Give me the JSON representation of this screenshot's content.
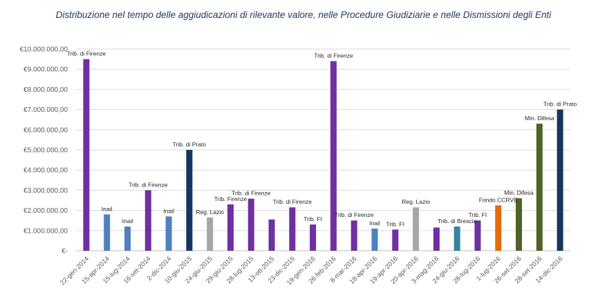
{
  "chart_data": {
    "type": "bar",
    "title": "Distribuzione nel tempo delle aggiudicazioni di rilevante valore, nelle Procedure Giudiziarie e nelle Dismissioni degli Enti",
    "ylim": [
      0,
      10000000
    ],
    "yticks": [
      0,
      1000000,
      2000000,
      3000000,
      4000000,
      5000000,
      6000000,
      7000000,
      8000000,
      9000000,
      10000000
    ],
    "ytick_labels": [
      "€-",
      "€1.000.000,00",
      "€2.000.000,00",
      "€3.000.000,00",
      "€4.000.000,00",
      "€5.000.000,00",
      "€6.000.000,00",
      "€7.000.000,00",
      "€8.000.000,00",
      "€9.000.000,00",
      "€10.000.000,00"
    ],
    "grid": true,
    "categories": [
      "22-gen-2014",
      "15-apr-2014",
      "15-lug-2014",
      "16-set-2014",
      "2-dic-2014",
      "10-giu-2015",
      "24-giu-2015",
      "29-giu-2015",
      "28-lug-2015",
      "13-ott-2015",
      "23-dic-2015",
      "19-gen-2016",
      "26-feb-2016",
      "8-mar-2016",
      "18-apr-2016",
      "19-apr-2016",
      "20-apr-2016",
      "3-mag-2016",
      "24-giu-2016",
      "28-lug-2016",
      "1-lug-2016",
      "26-set-2016",
      "28-set-2016",
      "14-dic-2016"
    ],
    "values": [
      9500000,
      1800000,
      1200000,
      3000000,
      1700000,
      5000000,
      1650000,
      2300000,
      2580000,
      1550000,
      2150000,
      1300000,
      9400000,
      1500000,
      1100000,
      1050000,
      2150000,
      1150000,
      1200000,
      1500000,
      2250000,
      2600000,
      6300000,
      7000000
    ],
    "labels": [
      "Trib. di Firenze",
      "Inail",
      "Inail",
      "Trib. di Firenze",
      "Inail",
      "Trib. di Prato",
      "Reg. Lazio",
      "Trib. Firenze",
      "Trib. di Firenze",
      "",
      "Trib. di Firenze",
      "Trib. FI",
      "Trib. di Firenze",
      "Trib. di Firenze",
      "Inail",
      "Trib. FI",
      "Reg. Lazio",
      "",
      "Trib. di Brescia",
      "Trib. FI",
      "Fondo CCRVE",
      "Min. Difesa",
      "Min. Difesa",
      "Trib. di Prato"
    ],
    "colors": [
      "#7030a0",
      "#4f81bd",
      "#4f81bd",
      "#7030a0",
      "#4f81bd",
      "#17365d",
      "#a6a6a6",
      "#7030a0",
      "#7030a0",
      "#7030a0",
      "#7030a0",
      "#7030a0",
      "#7030a0",
      "#7030a0",
      "#4f81bd",
      "#7030a0",
      "#a6a6a6",
      "#7030a0",
      "#31859c",
      "#7030a0",
      "#e36c09",
      "#4f6228",
      "#4f6228",
      "#17365d"
    ]
  }
}
